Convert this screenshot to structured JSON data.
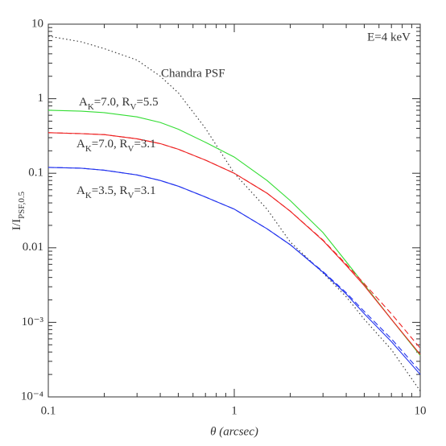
{
  "chart_data": {
    "type": "line",
    "log_x": true,
    "log_y": true,
    "xlim": [
      0.1,
      10
    ],
    "ylim": [
      0.0001,
      10
    ],
    "xticks": [
      0.1,
      1,
      10
    ],
    "yticks": [
      {
        "value": 0.0001,
        "label": "10⁻⁴"
      },
      {
        "value": 0.001,
        "label": "10⁻³"
      },
      0.01,
      0.1,
      1,
      10
    ],
    "x_label": "θ (arcsec)",
    "y_label": [
      "I/I",
      "PSF,0.5"
    ],
    "annotations": [
      "E=4 keV",
      "Chandra PSF"
    ],
    "x": [
      0.1,
      0.15,
      0.2,
      0.3,
      0.4,
      0.5,
      0.7,
      1,
      1.5,
      2,
      3,
      4,
      5,
      7,
      10
    ],
    "series": [
      {
        "color": "#333333",
        "style": "dotted",
        "values": [
          6.9,
          5.8,
          4.7,
          3.3,
          2.0,
          1.2,
          0.4,
          0.1,
          0.033,
          0.012,
          0.0046,
          0.0022,
          0.0011,
          0.00043,
          0.00012
        ]
      },
      {
        "label": [
          "A",
          "K",
          "=7.0, R",
          "V",
          "=5.5"
        ],
        "color": "#33dd33",
        "style": "solid",
        "values": [
          0.7,
          0.68,
          0.65,
          0.57,
          0.48,
          0.39,
          0.26,
          0.165,
          0.08,
          0.043,
          0.016,
          0.0065,
          0.0032,
          0.0011,
          0.00036
        ]
      },
      {
        "label": [
          "A",
          "K",
          "=7.0, R",
          "V",
          "=3.1"
        ],
        "color": "#ee2222",
        "style": "solid",
        "values": [
          0.35,
          0.34,
          0.33,
          0.29,
          0.25,
          0.21,
          0.15,
          0.1,
          0.054,
          0.031,
          0.0125,
          0.0058,
          0.0031,
          0.0011,
          0.00037
        ]
      },
      {
        "color": "#ee2222",
        "style": "dashed",
        "values": [
          0.35,
          0.34,
          0.33,
          0.29,
          0.25,
          0.21,
          0.15,
          0.1,
          0.054,
          0.031,
          0.0127,
          0.006,
          0.0033,
          0.0013,
          0.00045
        ]
      },
      {
        "label": [
          "A",
          "K",
          "=3.5, R",
          "V",
          "=3.1"
        ],
        "color": "#2233ee",
        "style": "solid",
        "values": [
          0.12,
          0.117,
          0.11,
          0.095,
          0.08,
          0.067,
          0.048,
          0.033,
          0.018,
          0.011,
          0.0047,
          0.0024,
          0.0013,
          0.00055,
          0.0002
        ]
      },
      {
        "color": "#2233ee",
        "style": "dashed",
        "values": [
          0.12,
          0.117,
          0.11,
          0.095,
          0.08,
          0.067,
          0.048,
          0.033,
          0.018,
          0.011,
          0.0048,
          0.0025,
          0.0014,
          0.0006,
          0.00022
        ]
      }
    ]
  }
}
